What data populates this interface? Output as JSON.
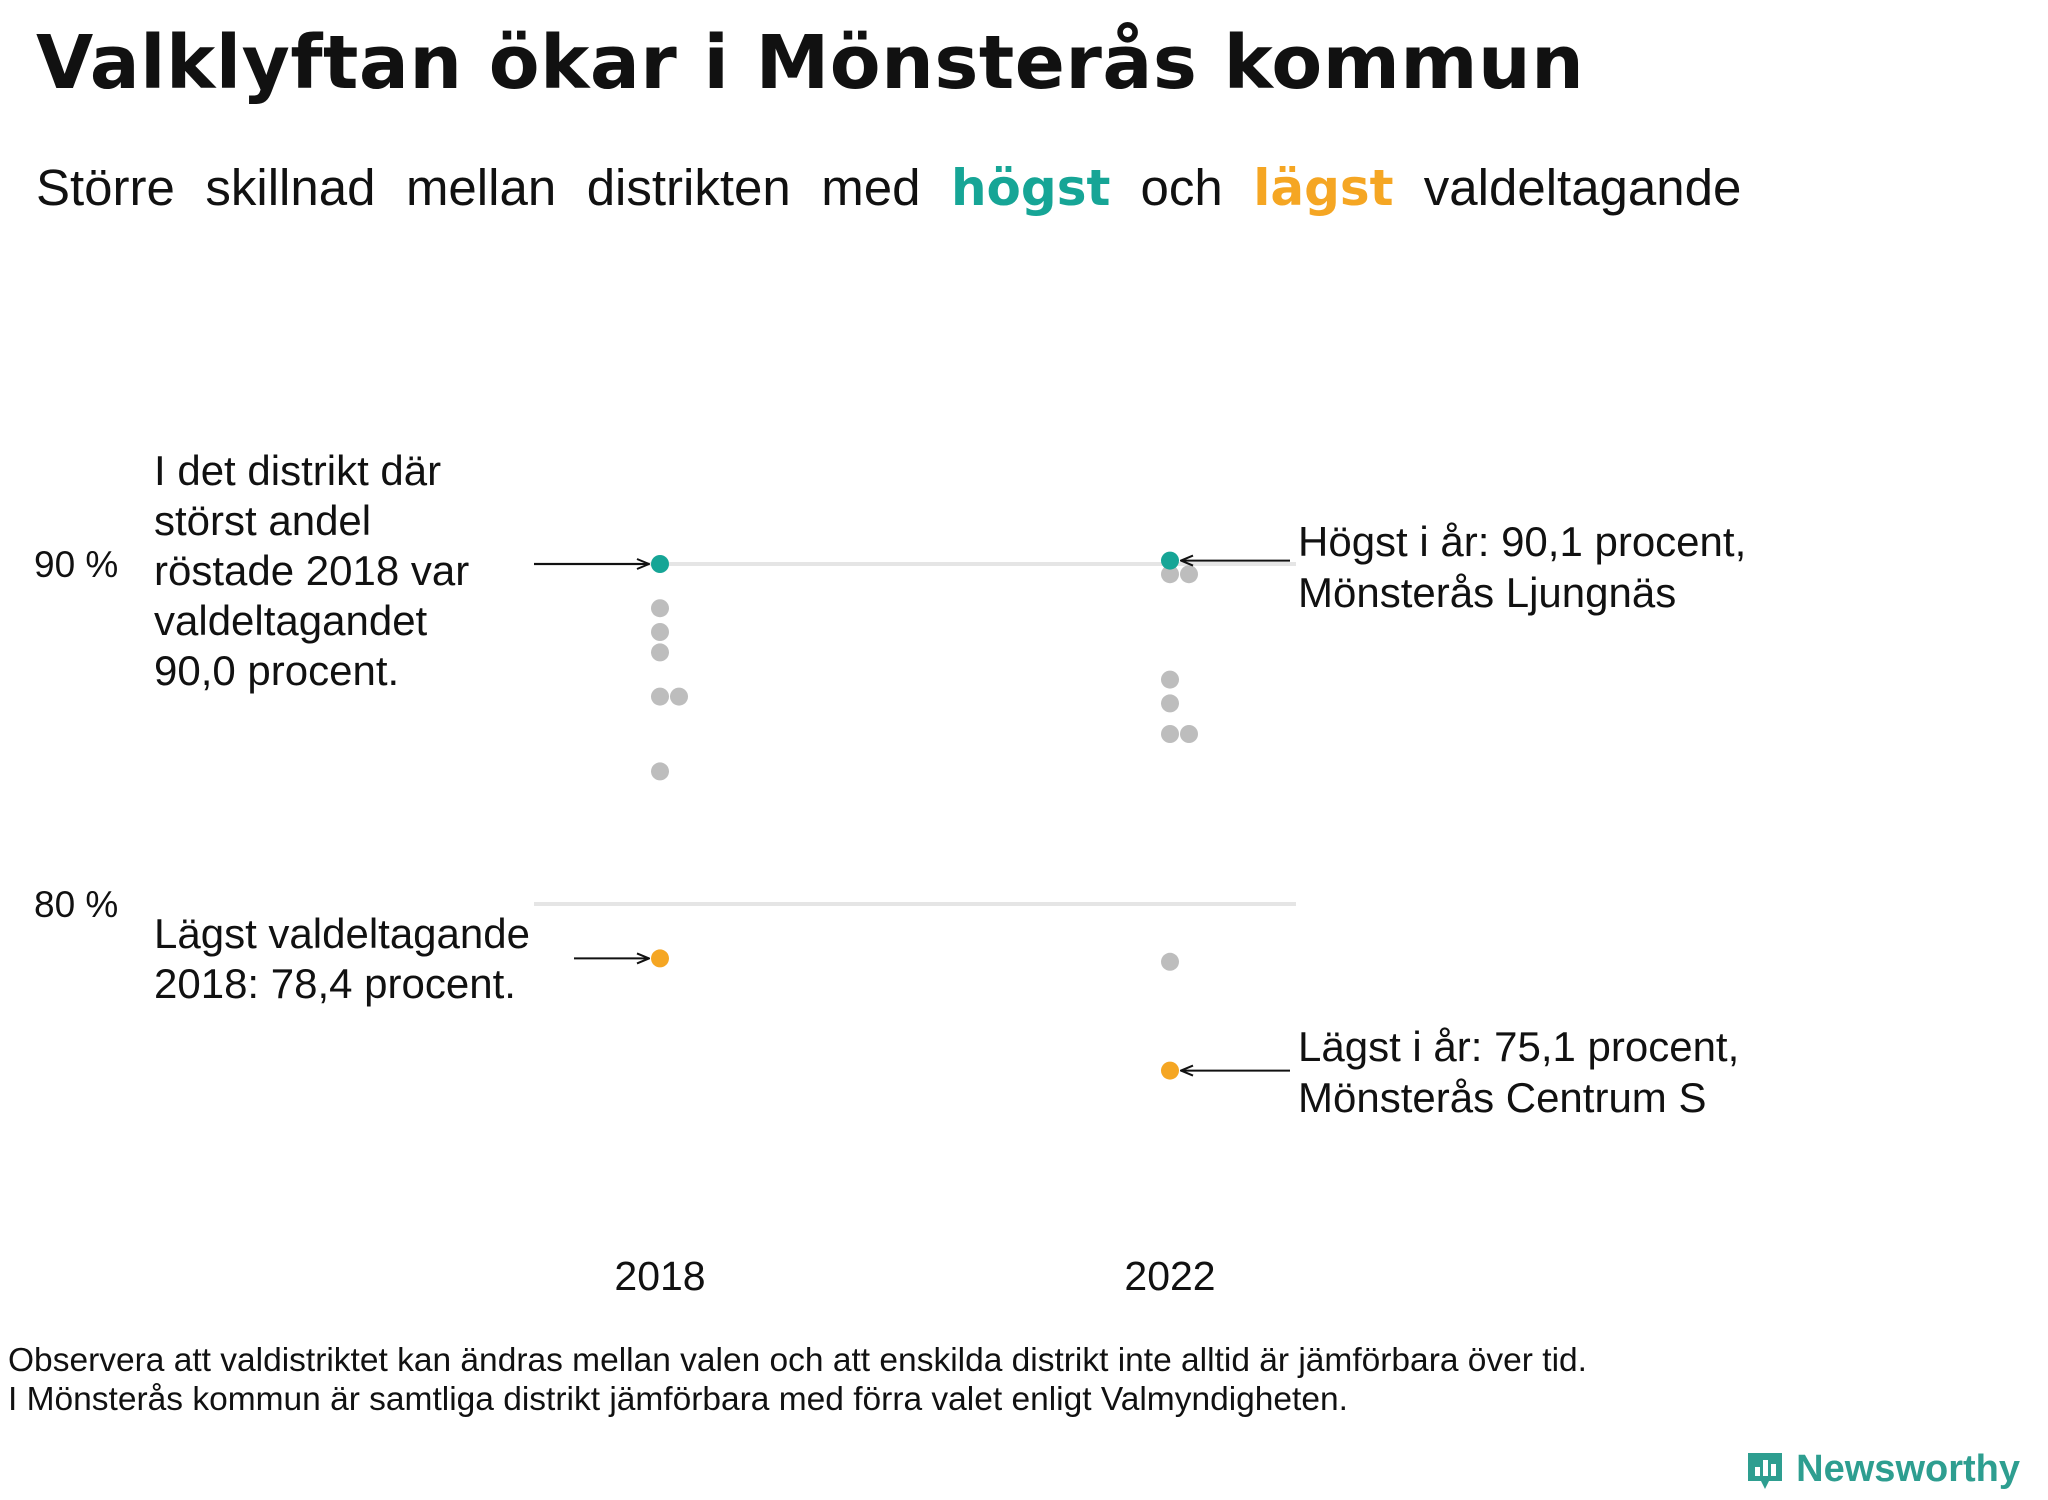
{
  "title": "Valklyftan ökar i Mönsterås kommun",
  "subtitle": {
    "words": [
      "Större",
      "skillnad",
      "mellan",
      "distrikten",
      "med"
    ],
    "highest_word": "högst",
    "and_word": "och",
    "lowest_word": "lägst",
    "last_word": "valdeltagande"
  },
  "colors": {
    "highest": "#16a596",
    "lowest": "#f5a623",
    "other": "#bdbdbd",
    "gridline": "#e5e5e5",
    "brand": "#2e9e90"
  },
  "chart_data": {
    "type": "scatter",
    "title": "Valklyftan ökar i Mönsterås kommun",
    "xlabel": "",
    "ylabel": "",
    "ylim": [
      74,
      92
    ],
    "yticks": [
      {
        "value": 90,
        "label": "90 %"
      },
      {
        "value": 80,
        "label": "80 %"
      }
    ],
    "categories": [
      "2018",
      "2022"
    ],
    "series": [
      {
        "year": "2018",
        "highest": 90.0,
        "lowest": 78.4,
        "others": [
          88.7,
          88.0,
          87.4,
          86.1,
          86.1,
          83.9
        ]
      },
      {
        "year": "2022",
        "highest": 90.1,
        "lowest": 75.1,
        "others": [
          89.7,
          89.7,
          86.6,
          85.9,
          85.0,
          85.0,
          78.3
        ]
      }
    ],
    "annotations": {
      "high_2018": [
        "I det distrikt där",
        "störst andel",
        "röstade 2018 var",
        "valdeltagandet",
        "90,0 procent."
      ],
      "low_2018": [
        "Lägst valdeltagande",
        "2018: 78,4 procent."
      ],
      "high_2022": [
        "Högst i år: 90,1 procent,",
        "Mönsterås Ljungnäs"
      ],
      "low_2022": [
        "Lägst i år: 75,1 procent,",
        "Mönsterås Centrum S"
      ]
    }
  },
  "footnote": {
    "line1": "Observera att valdistriktet kan ändras mellan valen och att enskilda distrikt inte alltid är jämförbara över tid.",
    "line2": "I Mönsterås kommun är samtliga distrikt jämförbara med förra valet enligt Valmyndigheten."
  },
  "brand": {
    "name": "Newsworthy",
    "icon": "bar-chart-icon"
  }
}
